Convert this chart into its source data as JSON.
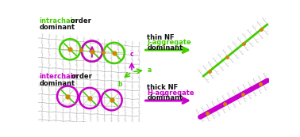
{
  "bg_color": "#ffffff",
  "green": "#44cc00",
  "magenta": "#cc00cc",
  "orange": "#cc8800",
  "gray": "#999999",
  "dark": "#111111",
  "top_label_colored": "intrachain",
  "top_label_black": " order",
  "top_label_dominant": "dominant",
  "bot_label_colored": "interchain",
  "bot_label_black": " order",
  "bot_label_dominant": "dominant",
  "top_arrow_line1": "thin NF",
  "top_arrow_line2": "J-aggregate",
  "top_arrow_line3": "dominant",
  "bot_arrow_line1": "thick NF",
  "bot_arrow_line2": "H-aggregate",
  "bot_arrow_line3": "dominant"
}
